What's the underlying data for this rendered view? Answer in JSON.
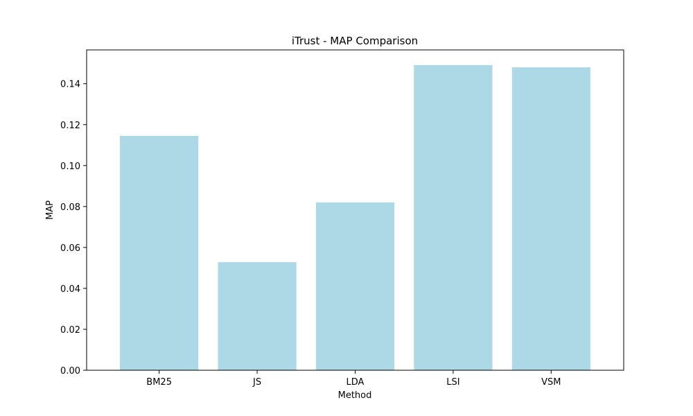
{
  "chart_data": {
    "type": "bar",
    "title": "iTrust - MAP Comparison",
    "xlabel": "Method",
    "ylabel": "MAP",
    "categories": [
      "BM25",
      "JS",
      "LDA",
      "LSI",
      "VSM"
    ],
    "values": [
      0.1145,
      0.0528,
      0.082,
      0.1491,
      0.148
    ],
    "ylim": [
      0,
      0.1565
    ],
    "yticks": [
      0.0,
      0.02,
      0.04,
      0.06,
      0.08,
      0.1,
      0.12,
      0.14
    ],
    "ytick_labels": [
      "0.00",
      "0.02",
      "0.04",
      "0.06",
      "0.08",
      "0.10",
      "0.12",
      "0.14"
    ],
    "bar_color": "#add8e6",
    "grid": false,
    "legend": "none"
  }
}
